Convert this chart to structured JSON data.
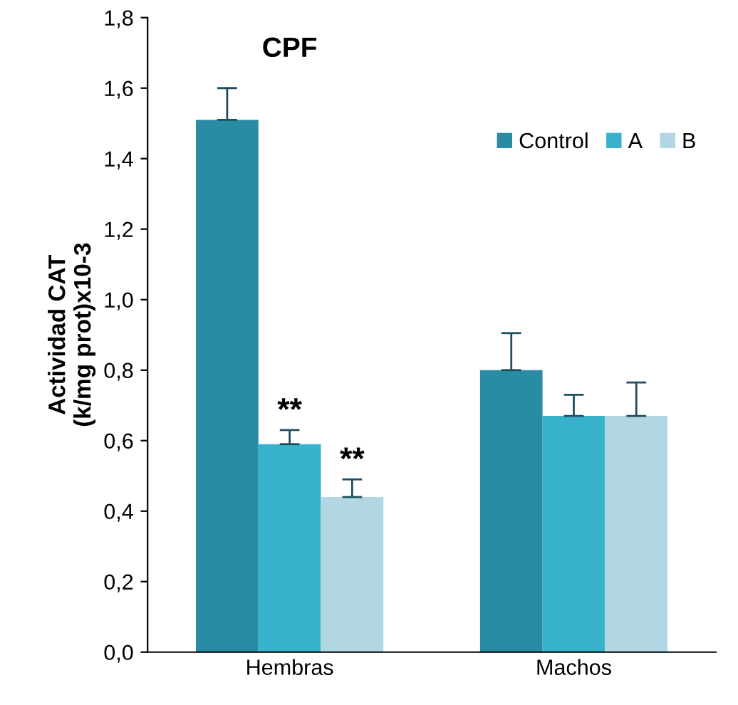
{
  "chart_data": {
    "type": "bar",
    "title": "CPF",
    "ylabel": "Actividad CAT\n(k/mg prot)x10-3",
    "categories": [
      "Hembras",
      "Machos"
    ],
    "series": [
      {
        "name": "Control",
        "color": "#2a8ca3",
        "values": [
          1.51,
          0.8
        ],
        "errors": [
          [
            1.51,
            1.6
          ],
          [
            0.8,
            0.905
          ]
        ]
      },
      {
        "name": "A",
        "color": "#38b2cc",
        "values": [
          0.59,
          0.67
        ],
        "errors": [
          [
            0.59,
            0.63
          ],
          [
            0.67,
            0.73
          ]
        ]
      },
      {
        "name": "B",
        "color": "#b2d6e2",
        "values": [
          0.44,
          0.67
        ],
        "errors": [
          [
            0.44,
            0.49
          ],
          [
            0.67,
            0.765
          ]
        ]
      }
    ],
    "annotations": [
      "**",
      "**"
    ],
    "ylim": [
      0,
      1.8
    ],
    "yticks": [
      {
        "value": 0,
        "label": "0,0"
      },
      {
        "value": 0.2,
        "label": "0,2"
      },
      {
        "value": 0.4,
        "label": "0,4"
      },
      {
        "value": 0.6,
        "label": "0,6"
      },
      {
        "value": 0.8,
        "label": "0,8"
      },
      {
        "value": 1.0,
        "label": "1,0"
      },
      {
        "value": 1.2,
        "label": "1,2"
      },
      {
        "value": 1.4,
        "label": "1,4"
      },
      {
        "value": 1.6,
        "label": "1,6"
      },
      {
        "value": 1.8,
        "label": "1,8"
      }
    ],
    "legend": "top right",
    "grid": false
  }
}
